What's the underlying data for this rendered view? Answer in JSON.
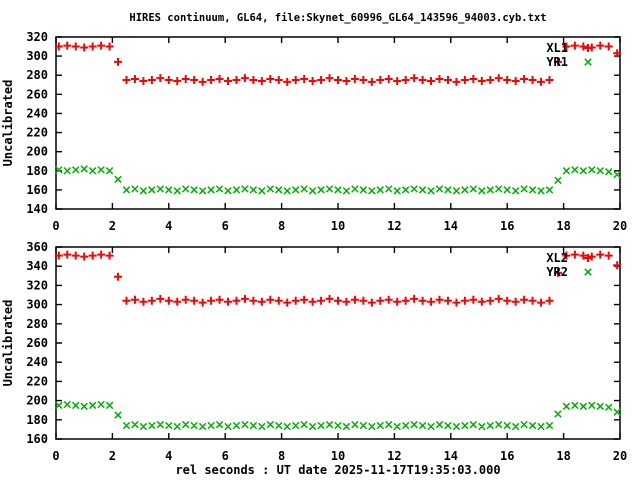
{
  "accent_colors": {
    "series1": "#ff0000",
    "series2": "#00b000",
    "frame": "#000000",
    "background": "#ffffff"
  },
  "chart_data": {
    "type": "scatter",
    "title": "HIRES continuum, GL64, file:Skynet_60996_GL64_143596_94003.cyb.txt",
    "xlabel": "rel seconds : UT date 2025-11-17T19:35:03.000",
    "xlim": [
      0,
      20
    ],
    "xtick_step": 2,
    "grid": false,
    "x": [
      0.1,
      0.4,
      0.7,
      1.0,
      1.3,
      1.6,
      1.9,
      2.2,
      2.5,
      2.8,
      3.1,
      3.4,
      3.7,
      4.0,
      4.3,
      4.6,
      4.9,
      5.2,
      5.5,
      5.8,
      6.1,
      6.4,
      6.7,
      7.0,
      7.3,
      7.6,
      7.9,
      8.2,
      8.5,
      8.8,
      9.1,
      9.4,
      9.7,
      10.0,
      10.3,
      10.6,
      10.9,
      11.2,
      11.5,
      11.8,
      12.1,
      12.4,
      12.7,
      13.0,
      13.3,
      13.6,
      13.9,
      14.2,
      14.5,
      14.8,
      15.1,
      15.4,
      15.7,
      16.0,
      16.3,
      16.6,
      16.9,
      17.2,
      17.5,
      17.8,
      18.1,
      18.4,
      18.7,
      19.0,
      19.3,
      19.6,
      19.9
    ],
    "panels": [
      {
        "ylabel": "Uncalibrated",
        "ylim": [
          140,
          320
        ],
        "ytick_step": 20,
        "legend_position": "top-right",
        "series": [
          {
            "name": "XL1",
            "marker": "plus",
            "color": "#ff0000",
            "values": [
              310,
              311,
              310,
              309,
              310,
              311,
              310,
              294,
              275,
              276,
              274,
              275,
              277,
              275,
              274,
              276,
              275,
              273,
              275,
              276,
              274,
              275,
              277,
              275,
              274,
              276,
              275,
              273,
              275,
              276,
              274,
              275,
              277,
              275,
              274,
              276,
              275,
              273,
              275,
              276,
              274,
              275,
              277,
              275,
              274,
              276,
              275,
              273,
              275,
              276,
              274,
              275,
              277,
              275,
              274,
              276,
              275,
              273,
              275,
              294,
              310,
              311,
              310,
              309,
              311,
              310,
              303
            ]
          },
          {
            "name": "YR1",
            "marker": "cross",
            "color": "#00b000",
            "values": [
              181,
              180,
              181,
              182,
              180,
              181,
              180,
              171,
              160,
              161,
              159,
              160,
              161,
              160,
              159,
              161,
              160,
              159,
              160,
              161,
              159,
              160,
              161,
              160,
              159,
              161,
              160,
              159,
              160,
              161,
              159,
              160,
              161,
              160,
              159,
              161,
              160,
              159,
              160,
              161,
              159,
              160,
              161,
              160,
              159,
              161,
              160,
              159,
              160,
              161,
              159,
              160,
              161,
              160,
              159,
              161,
              160,
              159,
              160,
              170,
              180,
              181,
              180,
              181,
              180,
              179,
              176
            ]
          }
        ]
      },
      {
        "ylabel": "Uncalibrated",
        "ylim": [
          160,
          360
        ],
        "ytick_step": 20,
        "legend_position": "top-right",
        "series": [
          {
            "name": "XL2",
            "marker": "plus",
            "color": "#ff0000",
            "values": [
              351,
              352,
              351,
              350,
              351,
              352,
              351,
              329,
              304,
              305,
              303,
              304,
              306,
              304,
              303,
              305,
              304,
              302,
              304,
              305,
              303,
              304,
              306,
              304,
              303,
              305,
              304,
              302,
              304,
              305,
              303,
              304,
              306,
              304,
              303,
              305,
              304,
              302,
              304,
              305,
              303,
              304,
              306,
              304,
              303,
              305,
              304,
              302,
              304,
              305,
              303,
              304,
              306,
              304,
              303,
              305,
              304,
              302,
              304,
              333,
              351,
              352,
              351,
              350,
              352,
              351,
              341
            ]
          },
          {
            "name": "YR2",
            "marker": "cross",
            "color": "#00b000",
            "values": [
              195,
              196,
              195,
              194,
              195,
              196,
              195,
              185,
              174,
              175,
              173,
              174,
              175,
              174,
              173,
              175,
              174,
              173,
              174,
              175,
              173,
              174,
              175,
              174,
              173,
              175,
              174,
              173,
              174,
              175,
              173,
              174,
              175,
              174,
              173,
              175,
              174,
              173,
              174,
              175,
              173,
              174,
              175,
              174,
              173,
              175,
              174,
              173,
              174,
              175,
              173,
              174,
              175,
              174,
              173,
              175,
              174,
              173,
              174,
              186,
              194,
              195,
              194,
              195,
              194,
              193,
              188
            ]
          }
        ]
      }
    ]
  }
}
